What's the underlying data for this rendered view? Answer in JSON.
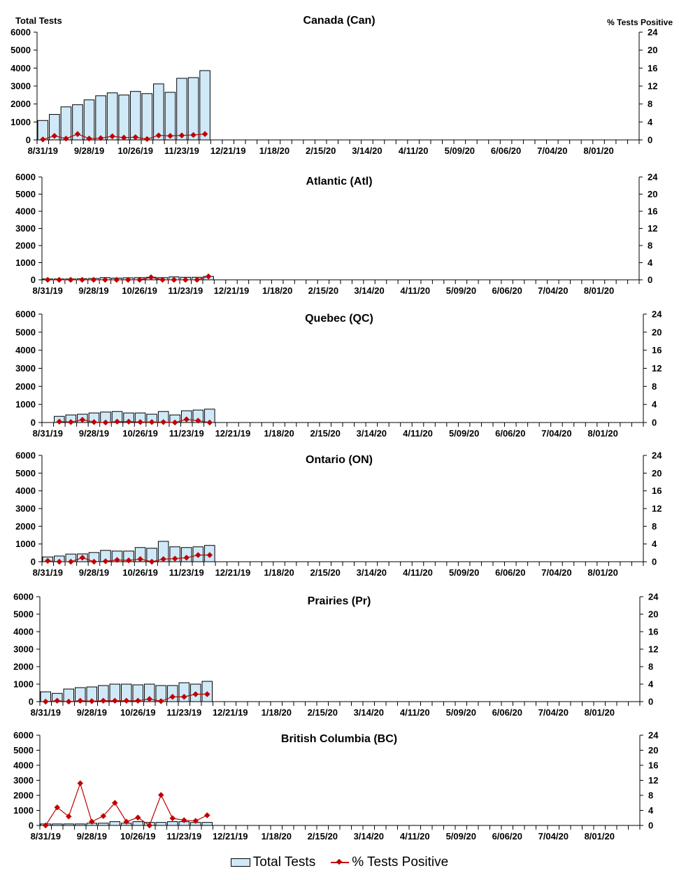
{
  "colors": {
    "bar_fill": "#cfe9f9",
    "bar_stroke": "#000000",
    "line": "#c00000"
  },
  "legend": {
    "bars": "Total Tests",
    "line": "% Tests Positive"
  },
  "chart_data": [
    {
      "type": "bar+line",
      "title": "Canada (Can)",
      "ylabel": "Total Tests",
      "y2label": "% Tests Positive",
      "ylim": [
        0,
        6000
      ],
      "y2lim": [
        0,
        24
      ],
      "yticks": [
        "0",
        "1000",
        "2000",
        "3000",
        "4000",
        "5000",
        "6000"
      ],
      "y2ticks": [
        "0",
        "4",
        "8",
        "12",
        "16",
        "20",
        "24"
      ],
      "x_tick_labels": [
        "8/31/19",
        "9/28/19",
        "10/26/19",
        "11/23/19",
        "12/21/19",
        "1/18/20",
        "2/15/20",
        "3/14/20",
        "4/11/20",
        "5/09/20",
        "6/06/20",
        "7/04/20",
        "8/01/20"
      ],
      "series": [
        {
          "name": "Total Tests",
          "values": [
            1080,
            1420,
            1840,
            1960,
            2230,
            2460,
            2620,
            2500,
            2700,
            2580,
            3120,
            2650,
            3430,
            3470,
            3860
          ]
        },
        {
          "name": "% Tests Positive",
          "values": [
            0.1,
            0.9,
            0.3,
            1.3,
            0.3,
            0.4,
            0.8,
            0.5,
            0.6,
            0.2,
            1.0,
            0.9,
            1.0,
            1.1,
            1.3
          ]
        }
      ]
    },
    {
      "type": "bar+line",
      "title": "Atlantic (Atl)",
      "ylim": [
        0,
        6000
      ],
      "y2lim": [
        0,
        24
      ],
      "yticks": [
        "0",
        "1000",
        "2000",
        "3000",
        "4000",
        "5000",
        "6000"
      ],
      "y2ticks": [
        "0",
        "4",
        "8",
        "12",
        "16",
        "20",
        "24"
      ],
      "x_tick_labels": [
        "8/31/19",
        "9/28/19",
        "10/26/19",
        "11/23/19",
        "12/21/19",
        "1/18/20",
        "2/15/20",
        "3/14/20",
        "4/11/20",
        "5/09/20",
        "6/06/20",
        "7/04/20",
        "8/01/20"
      ],
      "series": [
        {
          "name": "Total Tests",
          "values": [
            50,
            50,
            50,
            60,
            80,
            130,
            100,
            120,
            130,
            150,
            130,
            170,
            150,
            150,
            200
          ]
        },
        {
          "name": "% Tests Positive",
          "values": [
            0,
            0,
            0,
            0,
            0,
            0,
            0,
            0,
            0,
            0.6,
            0,
            0,
            0,
            0,
            0.8
          ]
        }
      ]
    },
    {
      "type": "bar+line",
      "title": "Quebec (QC)",
      "ylim": [
        0,
        6000
      ],
      "y2lim": [
        0,
        24
      ],
      "yticks": [
        "0",
        "1000",
        "2000",
        "3000",
        "4000",
        "5000",
        "6000"
      ],
      "y2ticks": [
        "0",
        "4",
        "8",
        "12",
        "16",
        "20",
        "24"
      ],
      "x_tick_labels": [
        "8/31/19",
        "9/28/19",
        "10/26/19",
        "11/23/19",
        "12/21/19",
        "1/18/20",
        "2/15/20",
        "3/14/20",
        "4/11/20",
        "5/09/20",
        "6/06/20",
        "7/04/20",
        "8/01/20"
      ],
      "series": [
        {
          "name": "Total Tests",
          "values": [
            null,
            340,
            420,
            460,
            530,
            580,
            610,
            530,
            530,
            460,
            610,
            420,
            650,
            690,
            740
          ]
        },
        {
          "name": "% Tests Positive",
          "values": [
            null,
            0.2,
            0.1,
            0.6,
            0.1,
            0,
            0.2,
            0.2,
            0.1,
            0.1,
            0.1,
            0,
            0.7,
            0.4,
            0
          ]
        }
      ]
    },
    {
      "type": "bar+line",
      "title": "Ontario (ON)",
      "ylim": [
        0,
        6000
      ],
      "y2lim": [
        0,
        24
      ],
      "yticks": [
        "0",
        "1000",
        "2000",
        "3000",
        "4000",
        "5000",
        "6000"
      ],
      "y2ticks": [
        "0",
        "4",
        "8",
        "12",
        "16",
        "20",
        "24"
      ],
      "x_tick_labels": [
        "8/31/19",
        "9/28/19",
        "10/26/19",
        "11/23/19",
        "12/21/19",
        "1/18/20",
        "2/15/20",
        "3/14/20",
        "4/11/20",
        "5/09/20",
        "6/06/20",
        "7/04/20",
        "8/01/20"
      ],
      "series": [
        {
          "name": "Total Tests",
          "values": [
            270,
            320,
            430,
            440,
            520,
            640,
            600,
            600,
            800,
            760,
            1150,
            840,
            800,
            840,
            920
          ]
        },
        {
          "name": "% Tests Positive",
          "values": [
            0.2,
            0,
            0,
            0.9,
            0,
            0.1,
            0.4,
            0.3,
            0.6,
            0,
            0.6,
            0.7,
            0.9,
            1.5,
            1.5
          ]
        }
      ]
    },
    {
      "type": "bar+line",
      "title": "Prairies (Pr)",
      "ylim": [
        0,
        6000
      ],
      "y2lim": [
        0,
        24
      ],
      "yticks": [
        "0",
        "1000",
        "2000",
        "3000",
        "4000",
        "5000",
        "6000"
      ],
      "y2ticks": [
        "0",
        "4",
        "8",
        "12",
        "16",
        "20",
        "24"
      ],
      "x_tick_labels": [
        "8/31/19",
        "9/28/19",
        "10/26/19",
        "11/23/19",
        "12/21/19",
        "1/18/20",
        "2/15/20",
        "3/14/20",
        "4/11/20",
        "5/09/20",
        "6/06/20",
        "7/04/20",
        "8/01/20"
      ],
      "series": [
        {
          "name": "Total Tests",
          "values": [
            560,
            470,
            720,
            800,
            840,
            920,
            1000,
            1000,
            960,
            1000,
            920,
            920,
            1080,
            1000,
            1160
          ]
        },
        {
          "name": "% Tests Positive",
          "values": [
            0.0,
            0.2,
            0,
            0.2,
            0.1,
            0.2,
            0.2,
            0.2,
            0.2,
            0.6,
            0.1,
            1.1,
            1.1,
            1.7,
            1.7
          ]
        }
      ]
    },
    {
      "type": "bar+line",
      "title": "British Columbia (BC)",
      "ylim": [
        0,
        6000
      ],
      "y2lim": [
        0,
        24
      ],
      "yticks": [
        "0",
        "1000",
        "2000",
        "3000",
        "4000",
        "5000",
        "6000"
      ],
      "y2ticks": [
        "0",
        "4",
        "8",
        "12",
        "16",
        "20",
        "24"
      ],
      "x_tick_labels": [
        "8/31/19",
        "9/28/19",
        "10/26/19",
        "11/23/19",
        "12/21/19",
        "1/18/20",
        "2/15/20",
        "3/14/20",
        "4/11/20",
        "5/09/20",
        "6/06/20",
        "7/04/20",
        "8/01/20"
      ],
      "series": [
        {
          "name": "Total Tests",
          "values": [
            100,
            100,
            100,
            100,
            150,
            150,
            250,
            150,
            250,
            200,
            200,
            250,
            250,
            200,
            200
          ]
        },
        {
          "name": "% Tests Positive",
          "values": [
            0,
            4.8,
            2.4,
            11.2,
            1.0,
            2.5,
            6.0,
            1.0,
            2.1,
            0,
            8.1,
            1.9,
            1.4,
            1.2,
            2.7
          ]
        }
      ]
    }
  ]
}
